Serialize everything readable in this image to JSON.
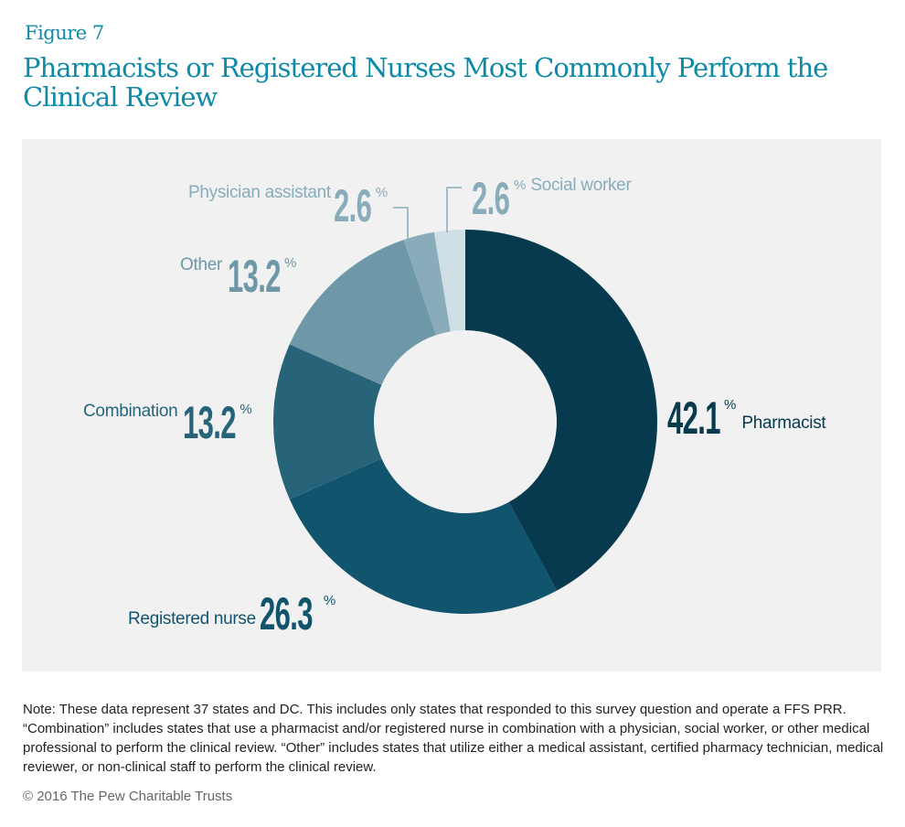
{
  "figure_label": "Figure 7",
  "title": "Pharmacists or Registered Nurses Most Commonly Perform the Clinical Review",
  "note": "Note: These data represent 37 states and DC. This includes only states that responded to this survey question and operate a FFS PRR. “Combination” includes states that use a pharmacist and/or registered nurse in combination with a physician, social worker, or other medical professional to perform the clinical review. “Other” includes states that utilize either a medical assistant, certified pharmacy technician, medical reviewer, or non-clinical staff to perform the clinical review.",
  "copyright": "© 2016 The Pew Charitable Trusts",
  "chart_data": {
    "type": "pie",
    "donut": true,
    "title": "Pharmacists or Registered Nurses Most Commonly Perform the Clinical Review",
    "unit": "%",
    "slices": [
      {
        "label": "Pharmacist",
        "value": 42.1,
        "display": "42.1",
        "color": "#073a4e"
      },
      {
        "label": "Registered nurse",
        "value": 26.3,
        "display": "26.3",
        "color": "#11546e"
      },
      {
        "label": "Combination",
        "value": 13.2,
        "display": "13.2",
        "color": "#276479"
      },
      {
        "label": "Other",
        "value": 13.2,
        "display": "13.2",
        "color": "#6e97a7"
      },
      {
        "label": "Physician assistant",
        "value": 2.6,
        "display": "2.6",
        "color": "#88acba"
      },
      {
        "label": "Social worker",
        "value": 2.6,
        "display": "2.6",
        "color": "#cfdfe5"
      }
    ]
  }
}
